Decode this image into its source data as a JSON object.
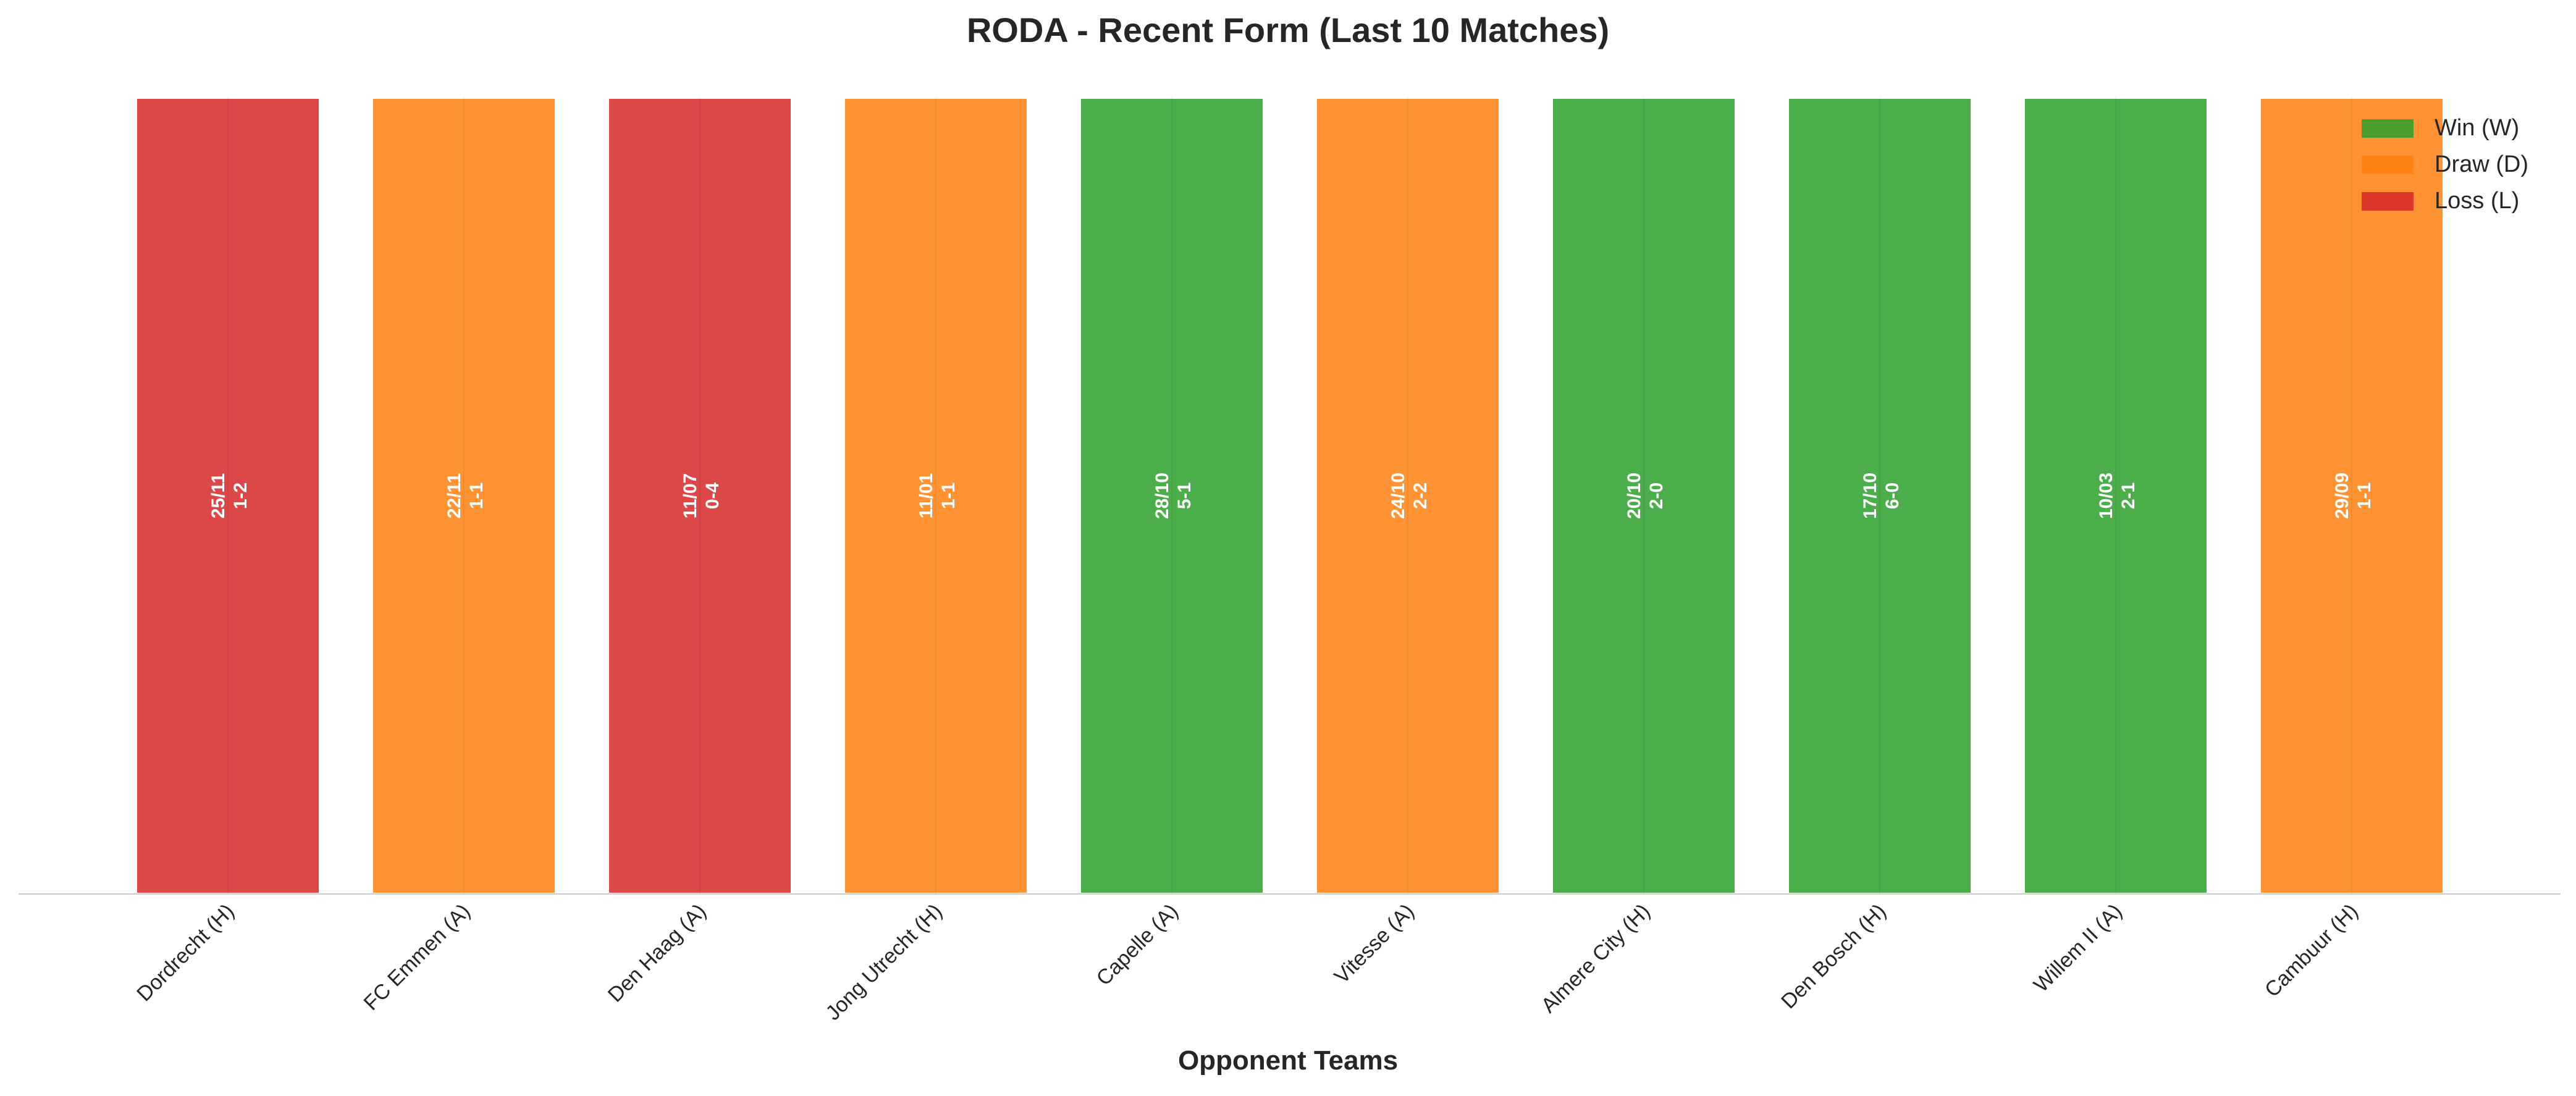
{
  "chart_data": {
    "type": "bar",
    "title": "RODA - Recent Form (Last 10 Matches)",
    "xlabel": "Opponent Teams",
    "ylabel": "",
    "categories": [
      "Dordrecht (H)",
      "FC Emmen (A)",
      "Den Haag (A)",
      "Jong Utrecht (H)",
      "Capelle (A)",
      "Vitesse (A)",
      "Almere City (H)",
      "Den Bosch (H)",
      "Willem II (A)",
      "Cambuur (H)"
    ],
    "values": [
      1,
      1,
      1,
      1,
      1,
      1,
      1,
      1,
      1,
      1
    ],
    "results": [
      "L",
      "D",
      "L",
      "D",
      "W",
      "D",
      "W",
      "W",
      "W",
      "D"
    ],
    "dates": [
      "25/11",
      "22/11",
      "11/07",
      "11/01",
      "28/10",
      "24/10",
      "20/10",
      "17/10",
      "10/03",
      "29/09"
    ],
    "scores": [
      "1-2",
      "1-1",
      "0-4",
      "1-1",
      "5-1",
      "2-2",
      "2-0",
      "6-0",
      "2-1",
      "1-1"
    ],
    "ylim": [
      0,
      1
    ],
    "grid": false,
    "legend": {
      "placement": "top-right",
      "entries": [
        {
          "key": "W",
          "label": "Win (W)"
        },
        {
          "key": "D",
          "label": "Draw (D)"
        },
        {
          "key": "L",
          "label": "Loss (L)"
        }
      ]
    },
    "colors": {
      "W": "#2ca02c",
      "D": "#ff7f0e",
      "L": "#d62728"
    }
  }
}
